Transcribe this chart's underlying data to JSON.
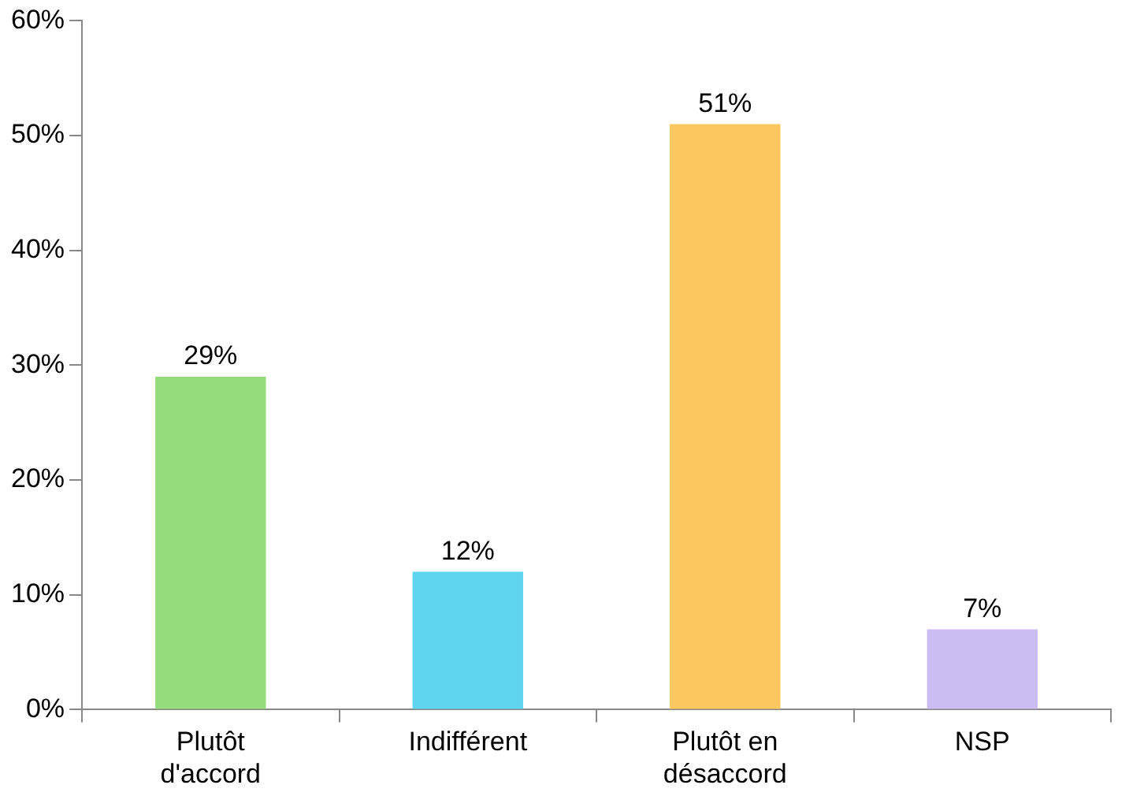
{
  "chart_data": {
    "type": "bar",
    "categories": [
      "Plutôt d'accord",
      "Indifférent",
      "Plutôt en désaccord",
      "NSP"
    ],
    "values": [
      29,
      12,
      51,
      7
    ],
    "colors": [
      "#94dc7c",
      "#5fd4ef",
      "#fcc75e",
      "#cbbcf2"
    ],
    "value_labels": [
      "29%",
      "12%",
      "51%",
      "7%"
    ],
    "ylim": [
      0,
      60
    ],
    "yticks": [
      {
        "value": 0,
        "label": "0%"
      },
      {
        "value": 10,
        "label": "10%"
      },
      {
        "value": 20,
        "label": "20%"
      },
      {
        "value": 30,
        "label": "30%"
      },
      {
        "value": 40,
        "label": "40%"
      },
      {
        "value": 50,
        "label": "50%"
      },
      {
        "value": 60,
        "label": "60%"
      }
    ],
    "grid": false,
    "legend": false
  }
}
